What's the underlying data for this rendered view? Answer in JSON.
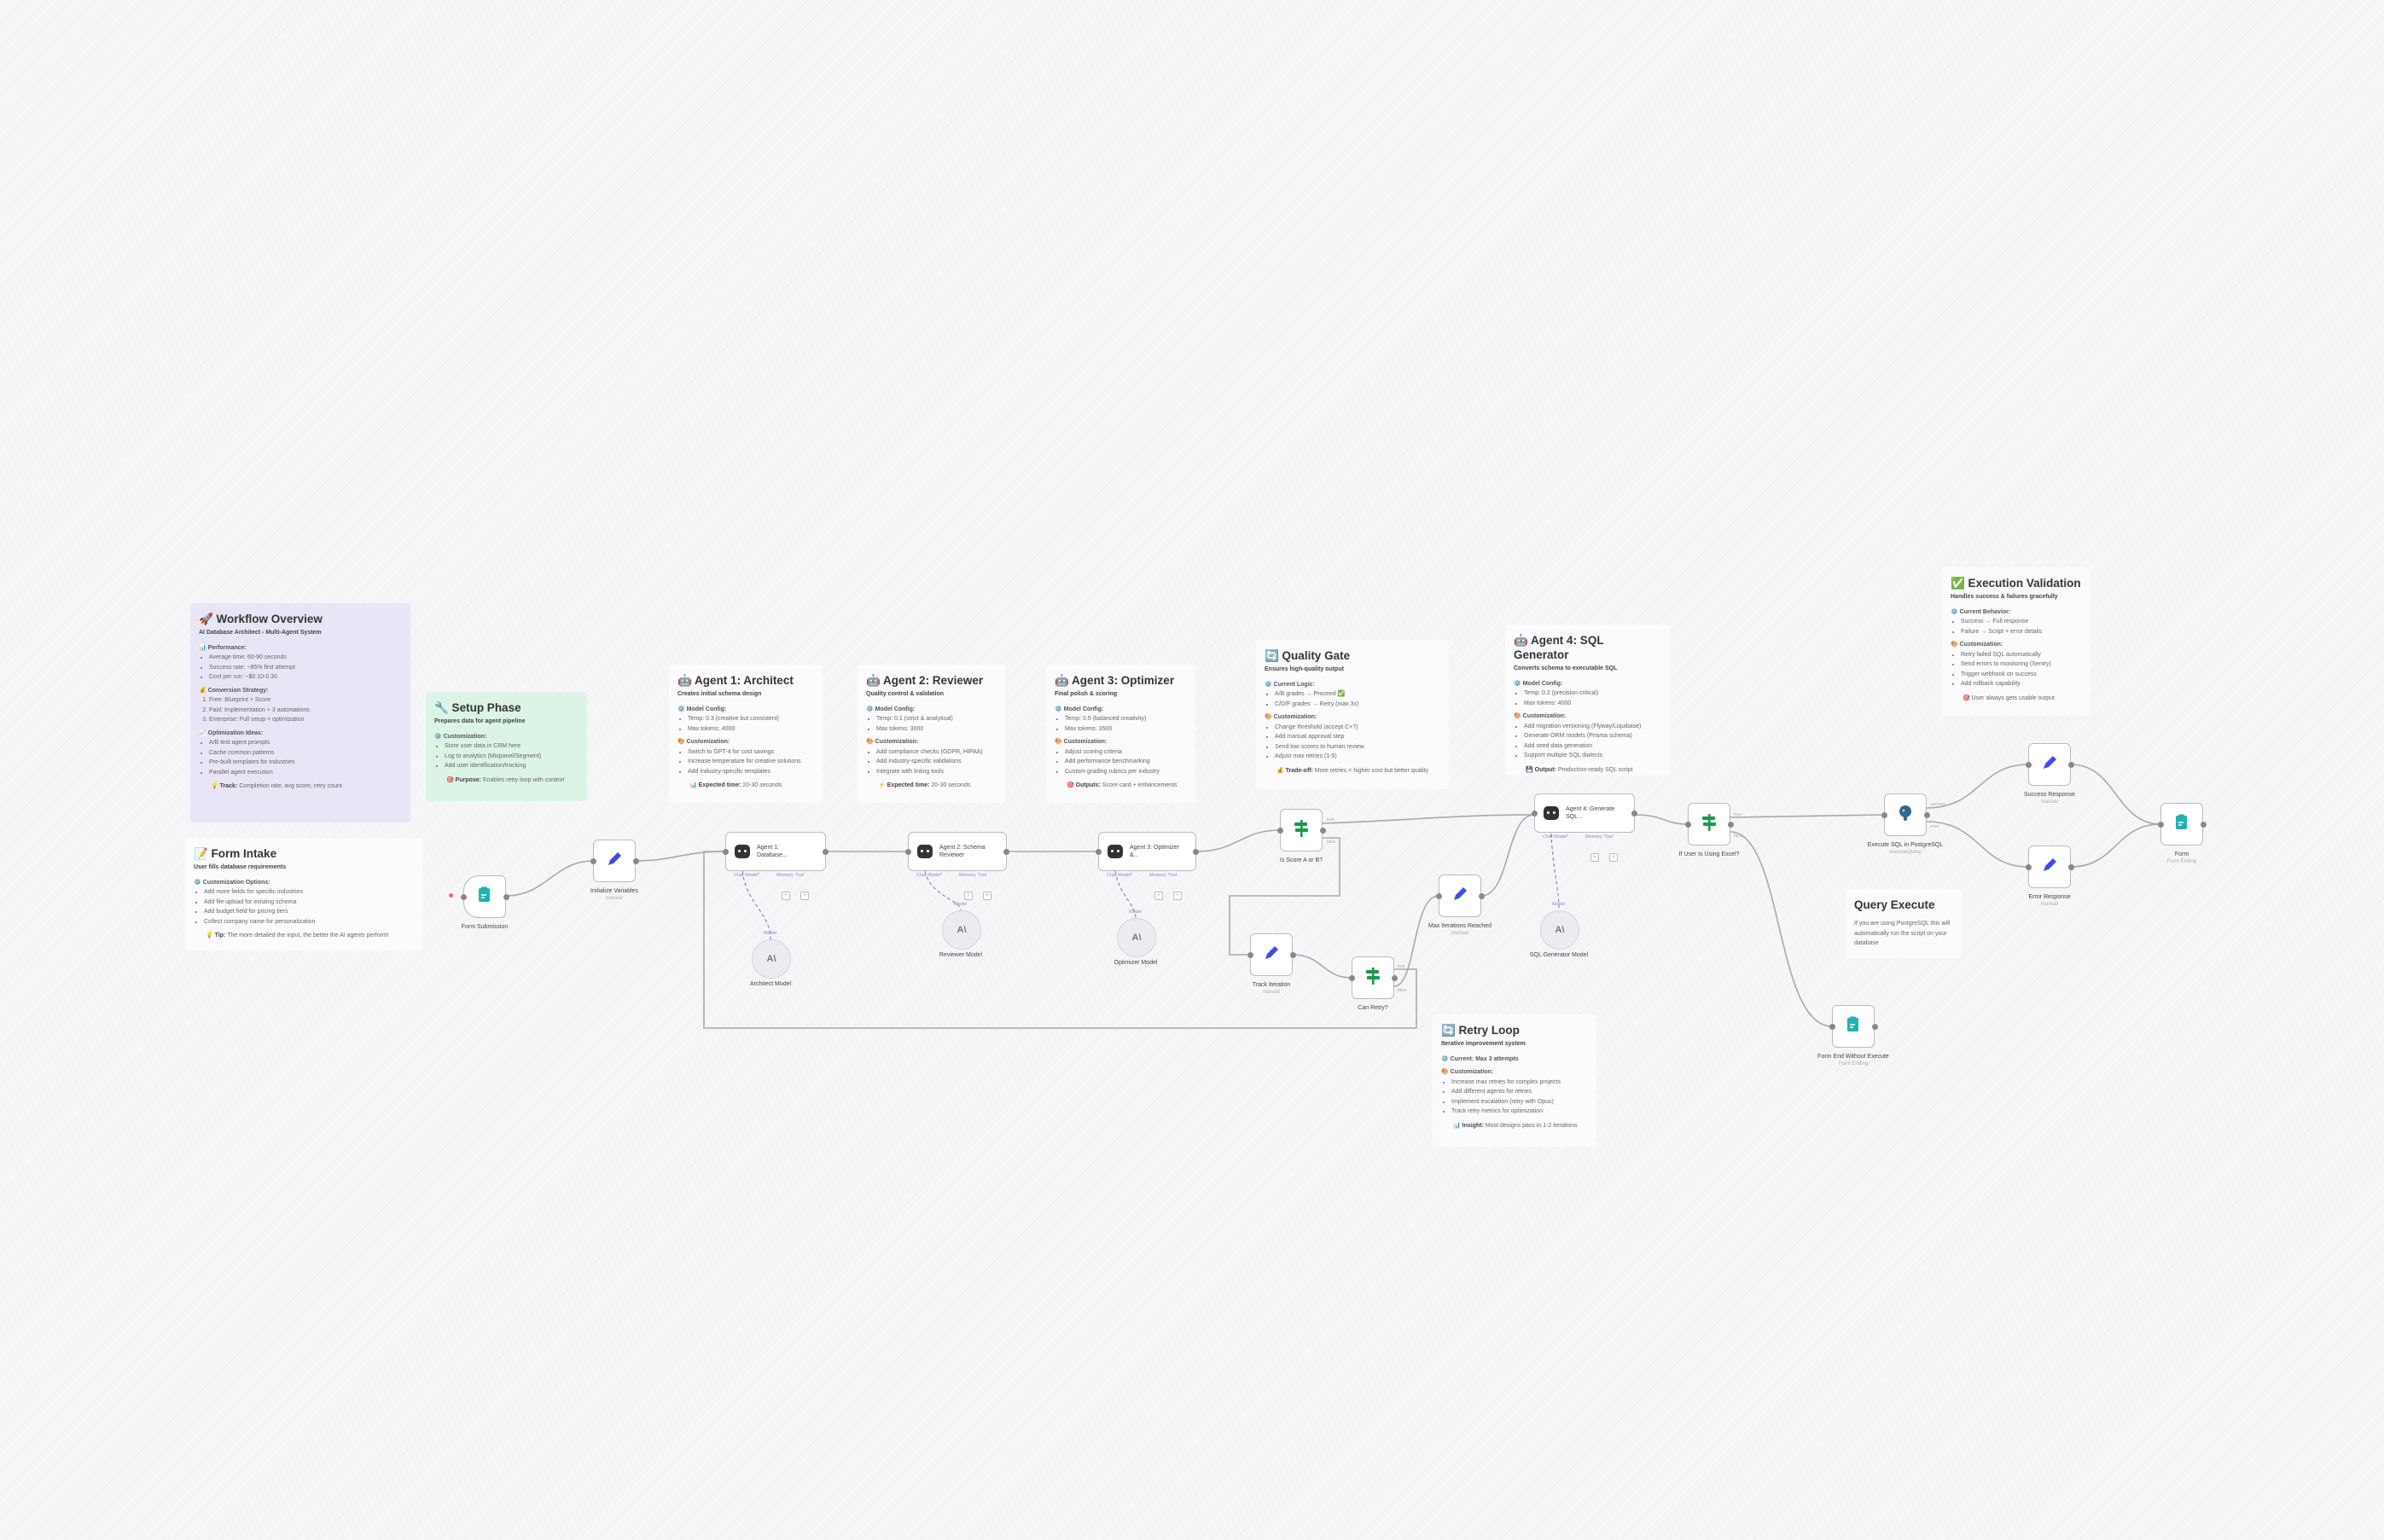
{
  "colors": {
    "canvas": "#f6f6f8",
    "overview_note": "#e8e5f6",
    "setup_note": "#dcf4e6",
    "edit_icon": "#3d4ef0",
    "if_icon": "#1a9a4a",
    "form_icon": "#1fb3b0",
    "agent_port": "#8a86c9"
  },
  "stickies": {
    "overview": {
      "title": "🚀 Workflow Overview",
      "subtitle": "AI Database Architect - Multi-Agent System",
      "sections": [
        {
          "heading": "📊 Performance:",
          "items": [
            "Average time: 60-90 seconds",
            "Success rate: ~85% first attempt",
            "Cost per run: ~$0.10-0.30"
          ]
        },
        {
          "heading": "💰 Conversion Strategy:",
          "ordered": true,
          "items": [
            "Free: Blueprint + Score",
            "Paid: Implementation + 3 automations",
            "Enterprise: Full setup + optimization"
          ]
        },
        {
          "heading": "📈 Optimization Ideas:",
          "items": [
            "A/B test agent prompts",
            "Cache common patterns",
            "Pre-built templates for industries",
            "Parallel agent execution"
          ]
        }
      ],
      "footer_label": "💡 Track:",
      "footer_text": " Completion rate, avg score, retry count"
    },
    "setup": {
      "title": "🔧 Setup Phase",
      "subtitle": "Prepares data for agent pipeline",
      "sections": [
        {
          "heading": "⚙️ Customization:",
          "items": [
            "Store user data in CRM here",
            "Log to analytics (Mixpanel/Segment)",
            "Add user identification/tracking"
          ]
        }
      ],
      "footer_label": "🎯 Purpose:",
      "footer_text": " Enables retry loop with context"
    },
    "form_intake": {
      "title": "📝 Form Intake",
      "subtitle": "User fills database requirements",
      "sections": [
        {
          "heading": "⚙️ Customization Options:",
          "items": [
            "Add more fields for specific industries",
            "Add file upload for existing schema",
            "Add budget field for pricing tiers",
            "Collect company name for personalization"
          ]
        }
      ],
      "footer_label": "💡 Tip:",
      "footer_text": " The more detailed the input, the better the AI agents perform!"
    },
    "agent1": {
      "title": "🤖 Agent 1: Architect",
      "subtitle": "Creates initial schema design",
      "sections": [
        {
          "heading": "⚙️ Model Config:",
          "items": [
            "Temp: 0.3 (creative but consistent)",
            "Max tokens: 4000"
          ]
        },
        {
          "heading": "🎨 Customization:",
          "items": [
            "Switch to GPT-4 for cost savings",
            "Increase temperature for creative solutions",
            "Add industry-specific templates"
          ]
        }
      ],
      "footer_label": "📊 Expected time:",
      "footer_text": " 20-30 seconds"
    },
    "agent2": {
      "title": "🤖 Agent 2: Reviewer",
      "subtitle": "Quality control & validation",
      "sections": [
        {
          "heading": "⚙️ Model Config:",
          "items": [
            "Temp: 0.1 (strict & analytical)",
            "Max tokens: 3000"
          ]
        },
        {
          "heading": "🎨 Customization:",
          "items": [
            "Add compliance checks (GDPR, HIPAA)",
            "Add industry-specific validations",
            "Integrate with linting tools"
          ]
        }
      ],
      "footer_label": "⚡ Expected time:",
      "footer_text": " 20-30 seconds"
    },
    "agent3": {
      "title": "🤖 Agent 3: Optimizer",
      "subtitle": "Final polish & scoring",
      "sections": [
        {
          "heading": "⚙️ Model Config:",
          "items": [
            "Temp: 0.5 (balanced creativity)",
            "Max tokens: 3500"
          ]
        },
        {
          "heading": "🎨 Customization:",
          "items": [
            "Adjust scoring criteria",
            "Add performance benchmarking",
            "Custom grading rubrics per industry"
          ]
        }
      ],
      "footer_label": "🎯 Outputs:",
      "footer_text": " Score card + enhancements"
    },
    "quality_gate": {
      "title": "🔄 Quality Gate",
      "subtitle": "Ensures high-quality output",
      "sections": [
        {
          "heading": "⚙️ Current Logic:",
          "items": [
            "A/B grades → Proceed ✅",
            "C/D/F grades → Retry (max 3x)"
          ]
        },
        {
          "heading": "🎨 Customization:",
          "items": [
            "Change threshold (accept C+?)",
            "Add manual approval step",
            "Send low scores to human review",
            "Adjust max retries (1-5)"
          ]
        }
      ],
      "footer_label": "💰 Trade-off:",
      "footer_text": " More retries = higher cost but better quality"
    },
    "agent4": {
      "title": "🤖 Agent 4: SQL Generator",
      "subtitle": "Converts schema to executable SQL",
      "sections": [
        {
          "heading": "⚙️ Model Config:",
          "items": [
            "Temp: 0.2 (precision critical)",
            "Max tokens: 4000"
          ]
        },
        {
          "heading": "🎨 Customization:",
          "items": [
            "Add migration versioning (Flyway/Liquibase)",
            "Generate ORM models (Prisma schema)",
            "Add seed data generation",
            "Support multiple SQL dialects"
          ]
        }
      ],
      "footer_label": "💾 Output:",
      "footer_text": " Production-ready SQL script"
    },
    "execution": {
      "title": "✅ Execution Validation",
      "subtitle": "Handles success & failures gracefully",
      "sections": [
        {
          "heading": "⚙️ Current Behavior:",
          "items": [
            "Success → Full response",
            "Failure → Script + error details"
          ]
        },
        {
          "heading": "🎨 Customization:",
          "items": [
            "Retry failed SQL automatically",
            "Send errors to monitoring (Sentry)",
            "Trigger webhook on success",
            "Add rollback capability"
          ]
        }
      ],
      "footer_label": "🎯",
      "footer_text": " User always gets usable output"
    },
    "retry": {
      "title": "🔄 Retry Loop",
      "subtitle": "Iterative improvement system",
      "sections": [
        {
          "heading": "⚙️ Current: Max 3 attempts",
          "items": []
        },
        {
          "heading": "🎨 Customization:",
          "items": [
            "Increase max retries for complex projects",
            "Add different agents for retries",
            "Implement escalation (retry with Opus)",
            "Track retry metrics for optimization"
          ]
        }
      ],
      "footer_label": "📊 Insight:",
      "footer_text": " Most designs pass in 1-2 iterations"
    },
    "query": {
      "title": "Query Execute",
      "subtitle": "",
      "sections": [],
      "body": "If you are using PostgreSQL this will automatically run the script on your database",
      "footer_label": "",
      "footer_text": ""
    }
  },
  "nodes": {
    "form_submission": {
      "label": "Form Submission",
      "sub": "",
      "icon": "form-icon"
    },
    "init_vars": {
      "label": "Initialize Variables",
      "sub": "manual",
      "icon": "pencil-icon"
    },
    "is_score": {
      "label": "Is Score A or B?",
      "sub": "",
      "icon": "signpost-icon"
    },
    "track": {
      "label": "Track Iteration",
      "sub": "manual",
      "icon": "pencil-icon"
    },
    "can_retry": {
      "label": "Can Retry?",
      "sub": "",
      "icon": "signpost-icon"
    },
    "max_iter": {
      "label": "Max Iterations Reached",
      "sub": "manual",
      "icon": "pencil-icon"
    },
    "if_user": {
      "label": "If User Is Using Excel?",
      "sub": "",
      "icon": "signpost-icon"
    },
    "execute_sql": {
      "label": "Execute SQL in PostgreSQL",
      "sub": "executeQuery",
      "icon": "postgres-icon"
    },
    "success": {
      "label": "Success Response",
      "sub": "manual",
      "icon": "pencil-icon"
    },
    "error": {
      "label": "Error Response",
      "sub": "manual",
      "icon": "pencil-icon"
    },
    "form_end": {
      "label": "Form",
      "sub": "Form Ending",
      "icon": "form-icon"
    },
    "form_end_noexec": {
      "label": "Form End Without Execute",
      "sub": "Form Ending",
      "icon": "form-icon"
    }
  },
  "agents": {
    "agent1": {
      "label": "Agent 1: Database...",
      "model": "Architect Model"
    },
    "agent2": {
      "label": "Agent 2: Schema Reviewer",
      "model": "Reviewer Model"
    },
    "agent3": {
      "label": "Agent 3: Optimizer &...",
      "model": "Optimizer Model"
    },
    "agent4": {
      "label": "Agent 4: Generate SQL...",
      "model": "SQL Generator Model"
    }
  },
  "ports": {
    "chat_model": "Chat Model*",
    "memory": "Memory",
    "tool": "Tool",
    "model": "Model",
    "plus": "+"
  },
  "edge_labels": {
    "true": "true",
    "false": "false",
    "success": "success",
    "error": "error"
  },
  "model_icon": "A\\"
}
